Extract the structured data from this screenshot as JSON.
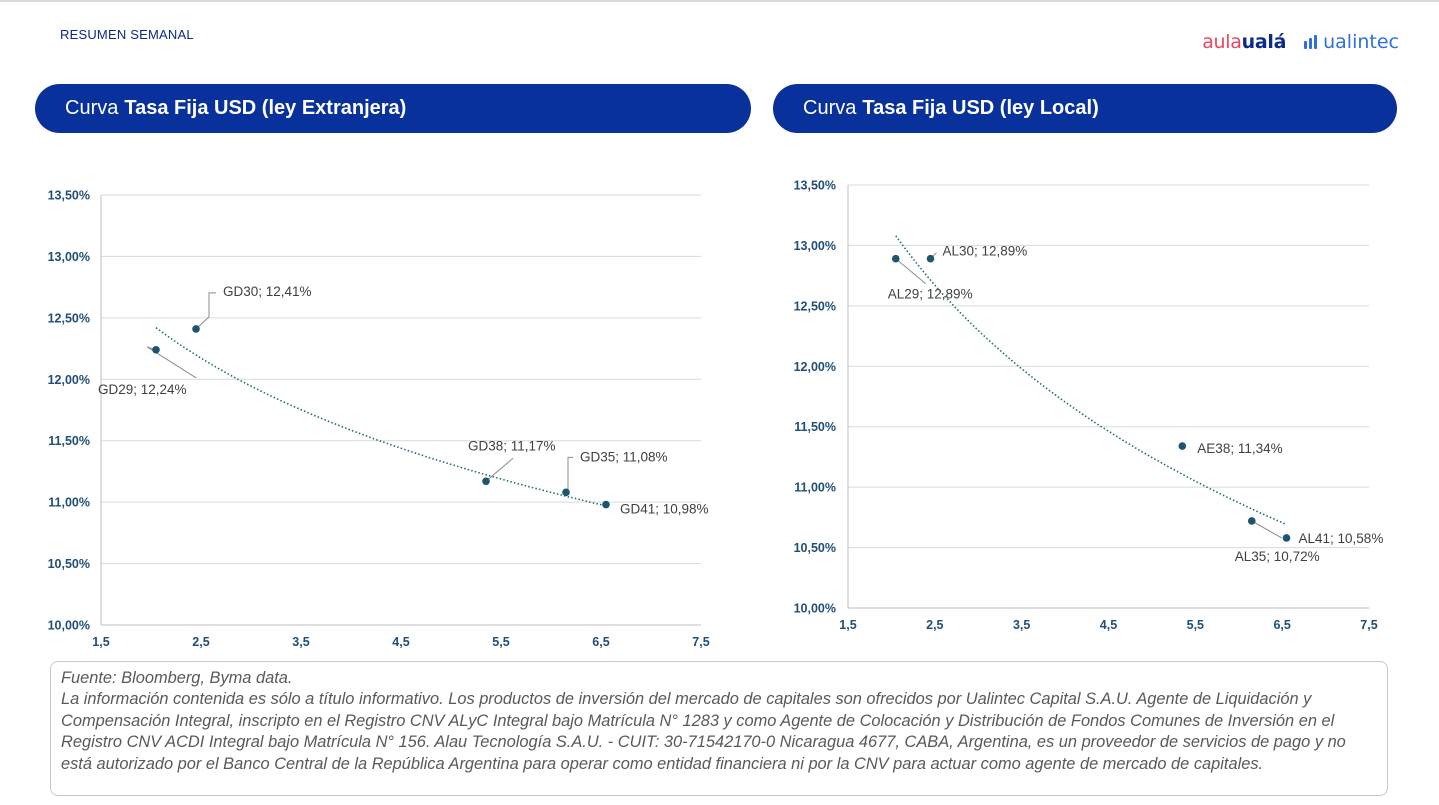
{
  "header": {
    "section_label": "RESUMEN SEMANAL",
    "logo_aula_part1": "aula",
    "logo_aula_part2": "ualá",
    "logo_ualintec": "ualintec"
  },
  "colors": {
    "brand_navy": "#08319c",
    "marker": "#1f5470",
    "trend": "#1f6e73",
    "axis_text": "#1f4e79",
    "grid": "#d9d9d9"
  },
  "chart_data": [
    {
      "type": "scatter",
      "title_prefix": "Curva",
      "title_bold": "Tasa Fija USD (ley Extranjera)",
      "xlabel": "",
      "ylabel": "",
      "xlim": [
        1.5,
        7.5
      ],
      "ylim": [
        10.0,
        13.5
      ],
      "x_ticks": [
        "1,5",
        "2,5",
        "3,5",
        "4,5",
        "5,5",
        "6,5",
        "7,5"
      ],
      "y_ticks": [
        "10,00%",
        "10,50%",
        "11,00%",
        "11,50%",
        "12,00%",
        "12,50%",
        "13,00%",
        "13,50%"
      ],
      "points": [
        {
          "name": "GD29",
          "x": 2.05,
          "y": 12.24,
          "label": "GD29; 12,24%"
        },
        {
          "name": "GD30",
          "x": 2.45,
          "y": 12.41,
          "label": "GD30; 12,41%"
        },
        {
          "name": "GD38",
          "x": 5.35,
          "y": 11.17,
          "label": "GD38; 11,17%"
        },
        {
          "name": "GD35",
          "x": 6.15,
          "y": 11.08,
          "label": "GD35; 11,08%"
        },
        {
          "name": "GD41",
          "x": 6.55,
          "y": 10.98,
          "label": "GD41; 10,98%"
        }
      ],
      "trendline": {
        "type": "logarithmic",
        "x_range": [
          2.05,
          6.55
        ],
        "y_at_start": 12.42,
        "y_at_end": 10.97
      }
    },
    {
      "type": "scatter",
      "title_prefix": "Curva",
      "title_bold": "Tasa Fija USD (ley Local)",
      "xlabel": "",
      "ylabel": "",
      "xlim": [
        1.5,
        7.5
      ],
      "ylim": [
        10.0,
        13.5
      ],
      "x_ticks": [
        "1,5",
        "2,5",
        "3,5",
        "4,5",
        "5,5",
        "6,5",
        "7,5"
      ],
      "y_ticks": [
        "10,00%",
        "10,50%",
        "11,00%",
        "11,50%",
        "12,00%",
        "12,50%",
        "13,00%",
        "13,50%"
      ],
      "points": [
        {
          "name": "AL29",
          "x": 2.05,
          "y": 12.89,
          "label": "AL29; 12,89%"
        },
        {
          "name": "AL30",
          "x": 2.45,
          "y": 12.89,
          "label": "AL30; 12,89%"
        },
        {
          "name": "AE38",
          "x": 5.35,
          "y": 11.34,
          "label": "AE38; 11,34%"
        },
        {
          "name": "AL35",
          "x": 6.15,
          "y": 10.72,
          "label": "AL35; 10,72%"
        },
        {
          "name": "AL41",
          "x": 6.55,
          "y": 10.58,
          "label": "AL41; 10,58%"
        }
      ],
      "trendline": {
        "type": "logarithmic",
        "x_range": [
          2.05,
          6.55
        ],
        "y_at_start": 13.08,
        "y_at_end": 10.69
      }
    }
  ],
  "footer": {
    "source": "Fuente: Bloomberg, Byma data.",
    "disclaimer": "La información contenida es sólo a título informativo. Los productos de inversión del mercado de capitales son ofrecidos por Ualintec Capital S.A.U. Agente de Liquidación y Compensación Integral, inscripto en el Registro CNV ALyC Integral bajo Matrícula N° 1283 y como Agente de Colocación y Distribución de Fondos Comunes de Inversión en el Registro CNV ACDI Integral bajo Matrícula N° 156. Alau Tecnología S.A.U. - CUIT: 30-71542170-0 Nicaragua 4677, CABA, Argentina, es un proveedor de servicios de pago y no está autorizado por el Banco Central de la República Argentina para operar como entidad financiera ni por la CNV para actuar como agente de mercado de capitales."
  }
}
